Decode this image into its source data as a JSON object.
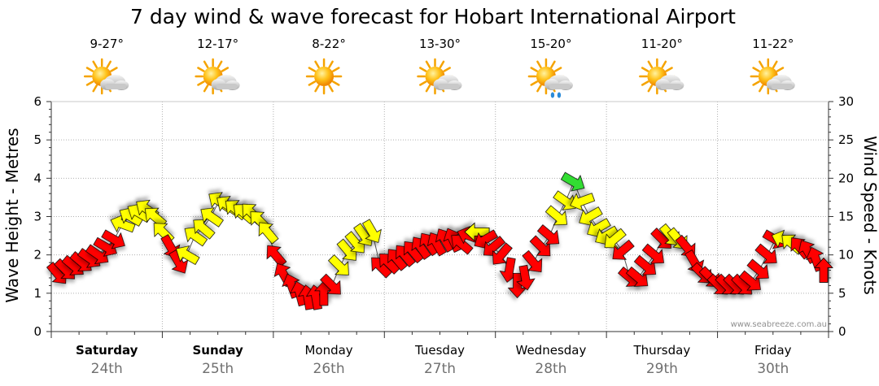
{
  "chart_data": {
    "type": "line",
    "title": "7 day wind & wave forecast for Hobart International Airport",
    "ylabel_left": "Wave Height - Metres",
    "ylabel_right": "Wind Speed - Knots",
    "ylim_left": [
      0,
      6
    ],
    "ylim_right": [
      0,
      30
    ],
    "left_ticks": [
      "0",
      "1",
      "2",
      "3",
      "4",
      "5",
      "6"
    ],
    "right_ticks": [
      "0",
      "5",
      "10",
      "15",
      "20",
      "25",
      "30"
    ],
    "watermark": "www.seabreeze.com.au",
    "days": [
      {
        "name": "Saturday",
        "date": "24th",
        "temp": "9-27°",
        "icon": "partly-cloudy-sun-icon",
        "bold": true
      },
      {
        "name": "Sunday",
        "date": "25th",
        "temp": "12-17°",
        "icon": "partly-cloudy-sun-icon",
        "bold": true
      },
      {
        "name": "Monday",
        "date": "26th",
        "temp": "8-22°",
        "icon": "sun-icon",
        "bold": false
      },
      {
        "name": "Tuesday",
        "date": "27th",
        "temp": "13-30°",
        "icon": "partly-cloudy-sun-icon",
        "bold": false
      },
      {
        "name": "Wednesday",
        "date": "28th",
        "temp": "15-20°",
        "icon": "showers-icon",
        "bold": false
      },
      {
        "name": "Thursday",
        "date": "29th",
        "temp": "11-20°",
        "icon": "partly-cloudy-sun-icon",
        "bold": false
      },
      {
        "name": "Friday",
        "date": "30th",
        "temp": "11-22°",
        "icon": "partly-cloudy-sun-icon",
        "bold": false
      }
    ],
    "wind_colors": {
      "strong": "#ff0000",
      "moderate": "#ffff00",
      "light": "#33dd33"
    },
    "wind_knots": [
      7.5,
      8,
      8.5,
      9,
      9.5,
      10,
      11,
      12,
      14,
      15,
      15.5,
      16,
      15,
      13,
      11,
      9,
      10,
      12.5,
      13.5,
      15,
      17,
      16.5,
      16,
      15.5,
      15.5,
      14.5,
      13,
      10,
      7.5,
      6,
      5,
      4.5,
      4.5,
      5,
      6,
      8.5,
      10.5,
      11.5,
      12.5,
      13,
      8.5,
      9,
      9.5,
      10,
      10.5,
      11,
      11.5,
      11.5,
      12,
      12,
      11.5,
      12.5,
      13,
      12,
      11,
      10,
      8,
      6,
      7,
      9,
      11,
      12.5,
      15,
      17,
      19.5,
      17,
      15,
      13.5,
      12.5,
      12,
      10.5,
      7,
      7,
      8.5,
      10,
      12,
      12.5,
      12,
      11,
      9,
      7.5,
      7,
      6,
      6,
      6,
      6,
      6.5,
      8,
      10,
      12,
      12,
      11.5,
      11,
      10.5,
      9.5,
      8
    ],
    "wind_direction_deg": [
      50,
      45,
      40,
      40,
      35,
      35,
      30,
      30,
      200,
      210,
      210,
      215,
      220,
      225,
      60,
      60,
      210,
      215,
      220,
      215,
      215,
      215,
      220,
      220,
      225,
      225,
      230,
      230,
      240,
      250,
      255,
      260,
      260,
      270,
      45,
      45,
      50,
      50,
      55,
      60,
      225,
      225,
      230,
      230,
      230,
      235,
      235,
      240,
      240,
      245,
      220,
      200,
      180,
      150,
      140,
      130,
      100,
      90,
      80,
      50,
      45,
      40,
      40,
      35,
      30,
      160,
      150,
      150,
      150,
      140,
      140,
      40,
      40,
      40,
      40,
      45,
      50,
      50,
      50,
      60,
      45,
      45,
      45,
      45,
      45,
      45,
      40,
      40,
      40,
      30,
      200,
      220,
      230,
      240,
      250,
      270
    ],
    "wind_category": [
      "strong",
      "strong",
      "strong",
      "strong",
      "strong",
      "strong",
      "strong",
      "strong",
      "moderate",
      "moderate",
      "moderate",
      "moderate",
      "moderate",
      "moderate",
      "strong",
      "strong",
      "moderate",
      "moderate",
      "moderate",
      "moderate",
      "moderate",
      "moderate",
      "moderate",
      "moderate",
      "moderate",
      "moderate",
      "moderate",
      "strong",
      "strong",
      "strong",
      "strong",
      "strong",
      "strong",
      "strong",
      "strong",
      "moderate",
      "moderate",
      "moderate",
      "moderate",
      "moderate",
      "strong",
      "strong",
      "strong",
      "strong",
      "strong",
      "strong",
      "strong",
      "strong",
      "strong",
      "strong",
      "strong",
      "strong",
      "moderate",
      "strong",
      "strong",
      "strong",
      "strong",
      "strong",
      "strong",
      "strong",
      "strong",
      "strong",
      "moderate",
      "moderate",
      "light",
      "moderate",
      "moderate",
      "moderate",
      "moderate",
      "moderate",
      "strong",
      "strong",
      "strong",
      "strong",
      "strong",
      "strong",
      "moderate",
      "moderate",
      "strong",
      "strong",
      "strong",
      "strong",
      "strong",
      "strong",
      "strong",
      "strong",
      "strong",
      "strong",
      "strong",
      "strong",
      "moderate",
      "moderate",
      "strong",
      "strong",
      "strong",
      "strong"
    ]
  }
}
